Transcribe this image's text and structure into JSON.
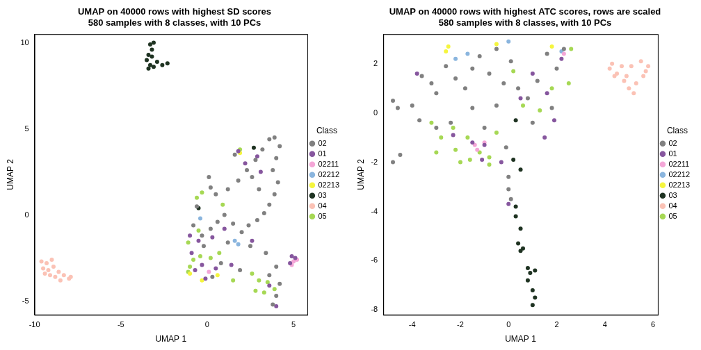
{
  "chart_data": [
    {
      "type": "scatter",
      "title": [
        "UMAP on 40000 rows with highest SD scores",
        "580 samples with 8 classes, with 10 PCs"
      ],
      "x_label": "UMAP 1",
      "y_label": "UMAP 2",
      "legend": "right",
      "legend_title": "Class",
      "grid": false,
      "marker": "circle",
      "xlim": [
        -10,
        5.8
      ],
      "xticks": [
        -10,
        -5,
        0,
        5
      ],
      "ylim": [
        -5.8,
        10.5
      ],
      "yticks": [
        -5,
        0,
        5,
        10
      ],
      "series": [
        {
          "name": "02",
          "color": "#808080",
          "values": [
            [
              0.1,
              2.2
            ],
            [
              0.2,
              1.6
            ],
            [
              0.5,
              1.2
            ],
            [
              1.2,
              1.5
            ],
            [
              1.8,
              2.0
            ],
            [
              2.3,
              2.6
            ],
            [
              2.8,
              3.2
            ],
            [
              3.2,
              3.8
            ],
            [
              3.6,
              4.4
            ],
            [
              3.9,
              4.5
            ],
            [
              4.2,
              4.0
            ],
            [
              4.0,
              3.3
            ],
            [
              3.8,
              2.6
            ],
            [
              4.1,
              1.9
            ],
            [
              3.9,
              1.2
            ],
            [
              3.6,
              0.6
            ],
            [
              3.3,
              0.1
            ],
            [
              2.9,
              -0.3
            ],
            [
              2.4,
              -0.6
            ],
            [
              2.0,
              -1.0
            ],
            [
              1.5,
              -0.5
            ],
            [
              1.0,
              0.0
            ],
            [
              0.6,
              -0.4
            ],
            [
              0.2,
              -0.8
            ],
            [
              -0.3,
              -1.2
            ],
            [
              1.2,
              -1.6
            ],
            [
              2.5,
              -1.8
            ],
            [
              3.4,
              -2.2
            ],
            [
              4.0,
              -3.0
            ],
            [
              3.6,
              -3.5
            ],
            [
              4.2,
              -4.0
            ],
            [
              4.0,
              -4.7
            ],
            [
              3.8,
              -5.2
            ],
            [
              2.6,
              2.2
            ],
            [
              1.6,
              3.5
            ],
            [
              3.0,
              1.5
            ],
            [
              -0.2,
              -1.8
            ],
            [
              0.8,
              -2.8
            ],
            [
              1.9,
              -3.2
            ],
            [
              0.3,
              -3.6
            ],
            [
              -0.6,
              0.5
            ],
            [
              -0.8,
              -0.6
            ]
          ]
        },
        {
          "name": "01",
          "color": "#86569e",
          "values": [
            [
              -1.0,
              -1.2
            ],
            [
              -0.5,
              -1.5
            ],
            [
              0.3,
              -1.3
            ],
            [
              -0.9,
              -2.2
            ],
            [
              -0.3,
              -2.9
            ],
            [
              0.5,
              -3.1
            ],
            [
              1.4,
              -2.9
            ],
            [
              2.2,
              3.0
            ],
            [
              2.9,
              3.4
            ],
            [
              1.8,
              3.7
            ],
            [
              3.1,
              2.5
            ],
            [
              1.0,
              -0.8
            ],
            [
              -0.1,
              -3.7
            ],
            [
              4.0,
              -5.3
            ],
            [
              3.6,
              -4.1
            ],
            [
              4.9,
              -2.4
            ],
            [
              5.1,
              -2.5
            ],
            [
              4.8,
              -2.8
            ],
            [
              2.6,
              -1.5
            ],
            [
              -0.7,
              -3.2
            ]
          ]
        },
        {
          "name": "02211",
          "color": "#f4a6d7",
          "values": [
            [
              5.0,
              -2.7
            ],
            [
              5.2,
              -2.6
            ],
            [
              4.9,
              -2.9
            ],
            [
              0.1,
              -3.3
            ]
          ]
        },
        {
          "name": "02212",
          "color": "#8ab5de",
          "values": [
            [
              1.8,
              -1.7
            ],
            [
              1.6,
              -1.5
            ],
            [
              -0.4,
              -0.2
            ]
          ]
        },
        {
          "name": "02213",
          "color": "#f5f53d",
          "values": [
            [
              -1.0,
              -3.4
            ],
            [
              -0.3,
              -3.8
            ],
            [
              0.6,
              -3.5
            ],
            [
              1.9,
              3.6
            ]
          ]
        },
        {
          "name": "03",
          "color": "#1f3322",
          "values": [
            [
              -3.3,
              9.9
            ],
            [
              -3.2,
              9.6
            ],
            [
              -3.4,
              9.3
            ],
            [
              -3.5,
              9.0
            ],
            [
              -3.3,
              8.7
            ],
            [
              -3.1,
              8.6
            ],
            [
              -3.4,
              8.5
            ],
            [
              -3.2,
              9.2
            ],
            [
              -2.9,
              8.9
            ],
            [
              -2.6,
              8.7
            ],
            [
              -2.3,
              8.8
            ],
            [
              -3.1,
              10.0
            ],
            [
              2.7,
              3.9
            ],
            [
              -0.5,
              0.4
            ]
          ]
        },
        {
          "name": "04",
          "color": "#fbc2b5",
          "values": [
            [
              -9.6,
              -2.7
            ],
            [
              -9.3,
              -2.8
            ],
            [
              -9.0,
              -2.6
            ],
            [
              -9.5,
              -3.1
            ],
            [
              -9.2,
              -3.2
            ],
            [
              -8.9,
              -3.0
            ],
            [
              -8.6,
              -3.3
            ],
            [
              -8.3,
              -3.5
            ],
            [
              -8.0,
              -3.7
            ],
            [
              -8.8,
              -3.6
            ],
            [
              -9.1,
              -3.5
            ],
            [
              -8.5,
              -3.8
            ],
            [
              -7.9,
              -3.6
            ],
            [
              -9.4,
              -3.4
            ]
          ]
        },
        {
          "name": "05",
          "color": "#a6d854",
          "values": [
            [
              -1.0,
              -3.0
            ],
            [
              -1.1,
              -3.3
            ],
            [
              -0.8,
              -2.6
            ],
            [
              -0.4,
              -2.4
            ],
            [
              0.2,
              -2.5
            ],
            [
              0.7,
              -2.2
            ],
            [
              -0.5,
              -0.9
            ],
            [
              -0.6,
              1.0
            ],
            [
              -0.3,
              1.3
            ],
            [
              1.9,
              3.8
            ],
            [
              2.6,
              -3.4
            ],
            [
              3.0,
              -3.8
            ],
            [
              3.5,
              -3.9
            ],
            [
              2.8,
              -4.4
            ],
            [
              3.3,
              -4.5
            ],
            [
              3.9,
              -4.3
            ],
            [
              1.5,
              -3.8
            ],
            [
              -1.1,
              -1.6
            ],
            [
              0.9,
              0.6
            ]
          ]
        }
      ]
    },
    {
      "type": "scatter",
      "title": [
        "UMAP on 40000 rows with highest ATC scores, rows are scaled",
        "580 samples with 8 classes, with 10 PCs"
      ],
      "x_label": "UMAP 1",
      "y_label": "UMAP 2",
      "legend": "right",
      "legend_title": "Class",
      "grid": false,
      "marker": "circle",
      "xlim": [
        -5.2,
        6.2
      ],
      "xticks": [
        -4,
        -2,
        0,
        2,
        4,
        6
      ],
      "ylim": [
        -8.2,
        3.2
      ],
      "yticks": [
        -8,
        -6,
        -4,
        -2,
        0,
        2
      ],
      "series": [
        {
          "name": "02",
          "color": "#808080",
          "values": [
            [
              -4.8,
              -2.0
            ],
            [
              -4.5,
              -1.7
            ],
            [
              -4.8,
              0.5
            ],
            [
              -4.6,
              0.2
            ],
            [
              -4.0,
              0.3
            ],
            [
              -3.6,
              1.5
            ],
            [
              -3.2,
              1.2
            ],
            [
              -3.0,
              0.8
            ],
            [
              -2.6,
              1.9
            ],
            [
              -2.2,
              1.4
            ],
            [
              -1.8,
              1.0
            ],
            [
              -1.5,
              1.8
            ],
            [
              -1.2,
              2.3
            ],
            [
              -0.8,
              1.6
            ],
            [
              -0.5,
              2.6
            ],
            [
              -0.2,
              1.2
            ],
            [
              0.1,
              2.1
            ],
            [
              0.4,
              1.0
            ],
            [
              0.8,
              0.6
            ],
            [
              1.2,
              1.3
            ],
            [
              1.6,
              2.4
            ],
            [
              2.0,
              1.8
            ],
            [
              2.3,
              2.6
            ],
            [
              1.0,
              -0.4
            ],
            [
              -0.5,
              0.3
            ],
            [
              -1.5,
              0.2
            ],
            [
              -2.4,
              -0.4
            ],
            [
              -3.0,
              -0.6
            ],
            [
              -0.1,
              -1.4
            ],
            [
              0.0,
              -2.6
            ],
            [
              0.0,
              -3.1
            ],
            [
              0.1,
              -3.5
            ],
            [
              -1.0,
              -0.6
            ],
            [
              1.8,
              0.2
            ],
            [
              -3.7,
              -0.3
            ]
          ]
        },
        {
          "name": "01",
          "color": "#86569e",
          "values": [
            [
              -3.8,
              1.6
            ],
            [
              -2.3,
              -0.9
            ],
            [
              -1.5,
              -1.2
            ],
            [
              -1.0,
              -1.3
            ],
            [
              0.5,
              0.6
            ],
            [
              1.0,
              1.6
            ],
            [
              1.5,
              -1.0
            ],
            [
              1.6,
              0.8
            ],
            [
              2.2,
              2.2
            ],
            [
              -0.3,
              -2.0
            ],
            [
              0.0,
              -3.7
            ],
            [
              -1.1,
              -1.9
            ],
            [
              1.9,
              -0.3
            ]
          ]
        },
        {
          "name": "02211",
          "color": "#f4a6d7",
          "values": [
            [
              -1.4,
              -1.3
            ],
            [
              -1.3,
              -1.5
            ],
            [
              -1.0,
              -1.2
            ],
            [
              2.3,
              2.4
            ]
          ]
        },
        {
          "name": "02212",
          "color": "#8ab5de",
          "values": [
            [
              -2.2,
              2.2
            ],
            [
              0.0,
              2.9
            ],
            [
              -1.7,
              2.4
            ],
            [
              2.2,
              2.5
            ]
          ]
        },
        {
          "name": "02213",
          "color": "#f5f53d",
          "values": [
            [
              -2.5,
              2.7
            ],
            [
              -0.5,
              2.8
            ],
            [
              1.8,
              2.7
            ],
            [
              -2.6,
              2.5
            ]
          ]
        },
        {
          "name": "03",
          "color": "#1f3322",
          "values": [
            [
              0.3,
              -3.8
            ],
            [
              0.3,
              -4.2
            ],
            [
              0.5,
              -4.7
            ],
            [
              0.4,
              -5.3
            ],
            [
              0.5,
              -5.6
            ],
            [
              0.6,
              -5.5
            ],
            [
              0.8,
              -6.3
            ],
            [
              0.9,
              -6.5
            ],
            [
              0.8,
              -6.8
            ],
            [
              1.0,
              -7.2
            ],
            [
              1.1,
              -7.5
            ],
            [
              1.0,
              -7.8
            ],
            [
              1.1,
              -6.4
            ],
            [
              0.5,
              -2.3
            ],
            [
              0.3,
              -0.3
            ],
            [
              0.2,
              -1.9
            ]
          ]
        },
        {
          "name": "04",
          "color": "#fbc2b5",
          "values": [
            [
              4.2,
              1.8
            ],
            [
              4.5,
              1.6
            ],
            [
              4.8,
              1.3
            ],
            [
              5.0,
              1.0
            ],
            [
              5.3,
              1.2
            ],
            [
              5.6,
              1.5
            ],
            [
              5.8,
              1.9
            ],
            [
              5.5,
              2.1
            ],
            [
              5.1,
              1.9
            ],
            [
              4.7,
              1.9
            ],
            [
              4.4,
              1.5
            ],
            [
              5.2,
              0.8
            ],
            [
              5.7,
              1.7
            ],
            [
              4.9,
              1.5
            ],
            [
              4.3,
              2.0
            ]
          ]
        },
        {
          "name": "05",
          "color": "#a6d854",
          "values": [
            [
              -3.2,
              -0.4
            ],
            [
              -2.8,
              -1.0
            ],
            [
              -2.2,
              -1.5
            ],
            [
              -2.0,
              -2.0
            ],
            [
              -1.6,
              -1.9
            ],
            [
              -1.2,
              -1.6
            ],
            [
              -0.8,
              -1.8
            ],
            [
              -0.5,
              -0.8
            ],
            [
              0.6,
              0.3
            ],
            [
              1.3,
              0.1
            ],
            [
              1.8,
              1.0
            ],
            [
              2.5,
              1.2
            ],
            [
              -2.3,
              -0.6
            ],
            [
              -1.7,
              -1.0
            ],
            [
              0.2,
              1.7
            ],
            [
              2.6,
              2.6
            ],
            [
              -0.8,
              -2.1
            ],
            [
              -3.0,
              -1.6
            ]
          ]
        }
      ]
    }
  ]
}
